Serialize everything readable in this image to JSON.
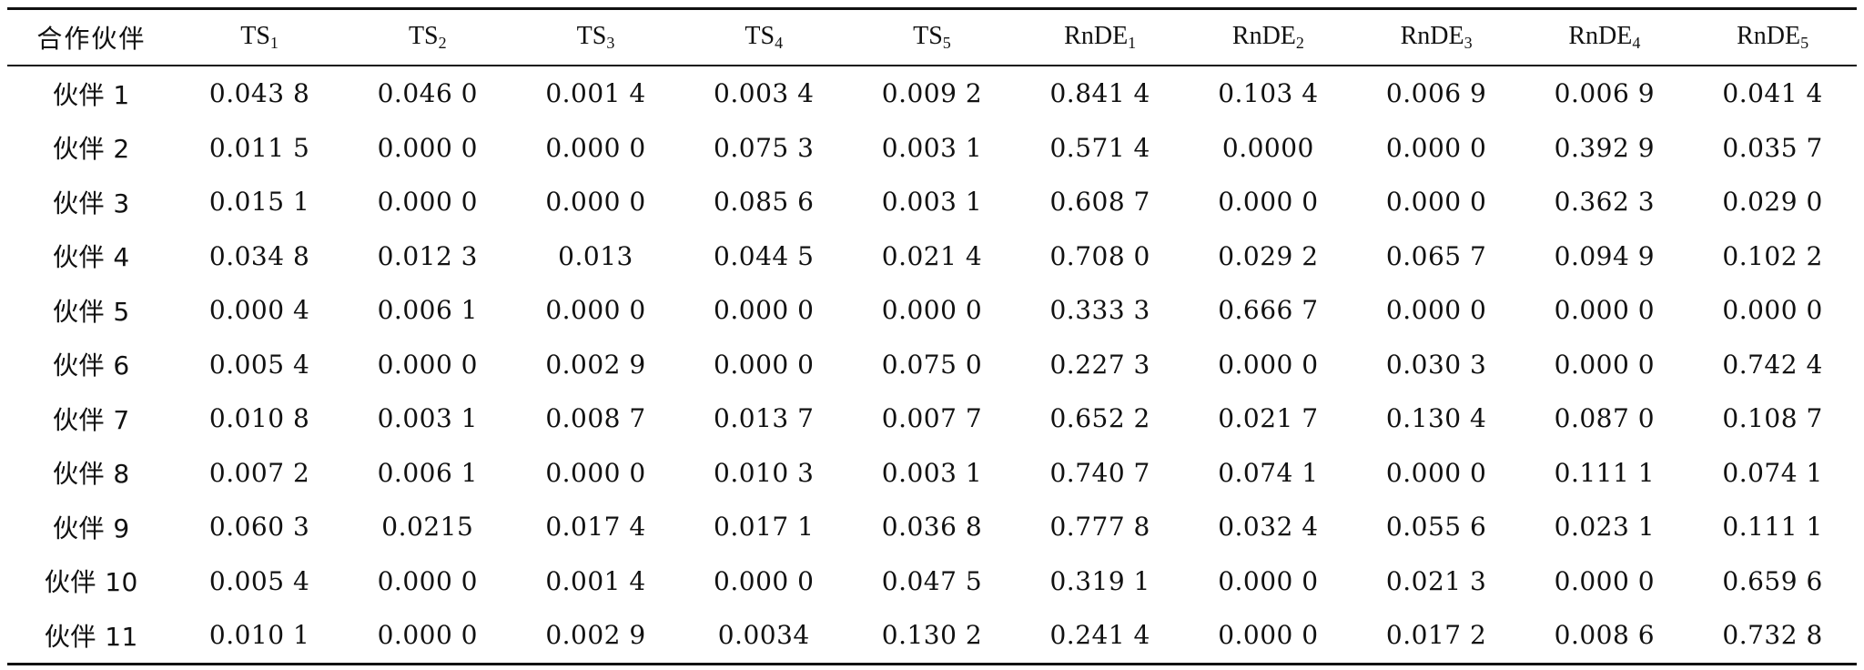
{
  "table": {
    "headers": [
      {
        "base": "合作伙伴",
        "sub": ""
      },
      {
        "base": "TS",
        "sub": "1"
      },
      {
        "base": "TS",
        "sub": "2"
      },
      {
        "base": "TS",
        "sub": "3"
      },
      {
        "base": "TS",
        "sub": "4"
      },
      {
        "base": "TS",
        "sub": "5"
      },
      {
        "base": "RnDE",
        "sub": "1"
      },
      {
        "base": "RnDE",
        "sub": "2"
      },
      {
        "base": "RnDE",
        "sub": "3"
      },
      {
        "base": "RnDE",
        "sub": "4"
      },
      {
        "base": "RnDE",
        "sub": "5"
      }
    ],
    "rows": [
      [
        "伙伴 1",
        "0.043 8",
        "0.046 0",
        "0.001 4",
        "0.003 4",
        "0.009 2",
        "0.841 4",
        "0.103 4",
        "0.006 9",
        "0.006 9",
        "0.041 4"
      ],
      [
        "伙伴 2",
        "0.011 5",
        "0.000 0",
        "0.000 0",
        "0.075 3",
        "0.003 1",
        "0.571 4",
        "0.0000",
        "0.000 0",
        "0.392 9",
        "0.035 7"
      ],
      [
        "伙伴 3",
        "0.015 1",
        "0.000 0",
        "0.000 0",
        "0.085 6",
        "0.003 1",
        "0.608 7",
        "0.000 0",
        "0.000 0",
        "0.362 3",
        "0.029 0"
      ],
      [
        "伙伴 4",
        "0.034 8",
        "0.012 3",
        "0.013",
        "0.044 5",
        "0.021 4",
        "0.708 0",
        "0.029 2",
        "0.065 7",
        "0.094 9",
        "0.102 2"
      ],
      [
        "伙伴 5",
        "0.000 4",
        "0.006 1",
        "0.000 0",
        "0.000 0",
        "0.000 0",
        "0.333 3",
        "0.666 7",
        "0.000 0",
        "0.000 0",
        "0.000 0"
      ],
      [
        "伙伴 6",
        "0.005 4",
        "0.000 0",
        "0.002 9",
        "0.000 0",
        "0.075 0",
        "0.227 3",
        "0.000 0",
        "0.030 3",
        "0.000 0",
        "0.742 4"
      ],
      [
        "伙伴 7",
        "0.010 8",
        "0.003 1",
        "0.008 7",
        "0.013 7",
        "0.007 7",
        "0.652 2",
        "0.021 7",
        "0.130 4",
        "0.087 0",
        "0.108 7"
      ],
      [
        "伙伴 8",
        "0.007 2",
        "0.006 1",
        "0.000 0",
        "0.010 3",
        "0.003 1",
        "0.740 7",
        "0.074 1",
        "0.000 0",
        "0.111 1",
        "0.074 1"
      ],
      [
        "伙伴 9",
        "0.060 3",
        "0.0215",
        "0.017 4",
        "0.017 1",
        "0.036 8",
        "0.777 8",
        "0.032 4",
        "0.055 6",
        "0.023 1",
        "0.111 1"
      ],
      [
        "伙伴 10",
        "0.005 4",
        "0.000 0",
        "0.001 4",
        "0.000 0",
        "0.047 5",
        "0.319 1",
        "0.000 0",
        "0.021 3",
        "0.000 0",
        "0.659 6"
      ],
      [
        "伙伴 11",
        "0.010 1",
        "0.000 0",
        "0.002 9",
        "0.0034",
        "0.130 2",
        "0.241 4",
        "0.000 0",
        "0.017 2",
        "0.008 6",
        "0.732 8"
      ]
    ]
  }
}
